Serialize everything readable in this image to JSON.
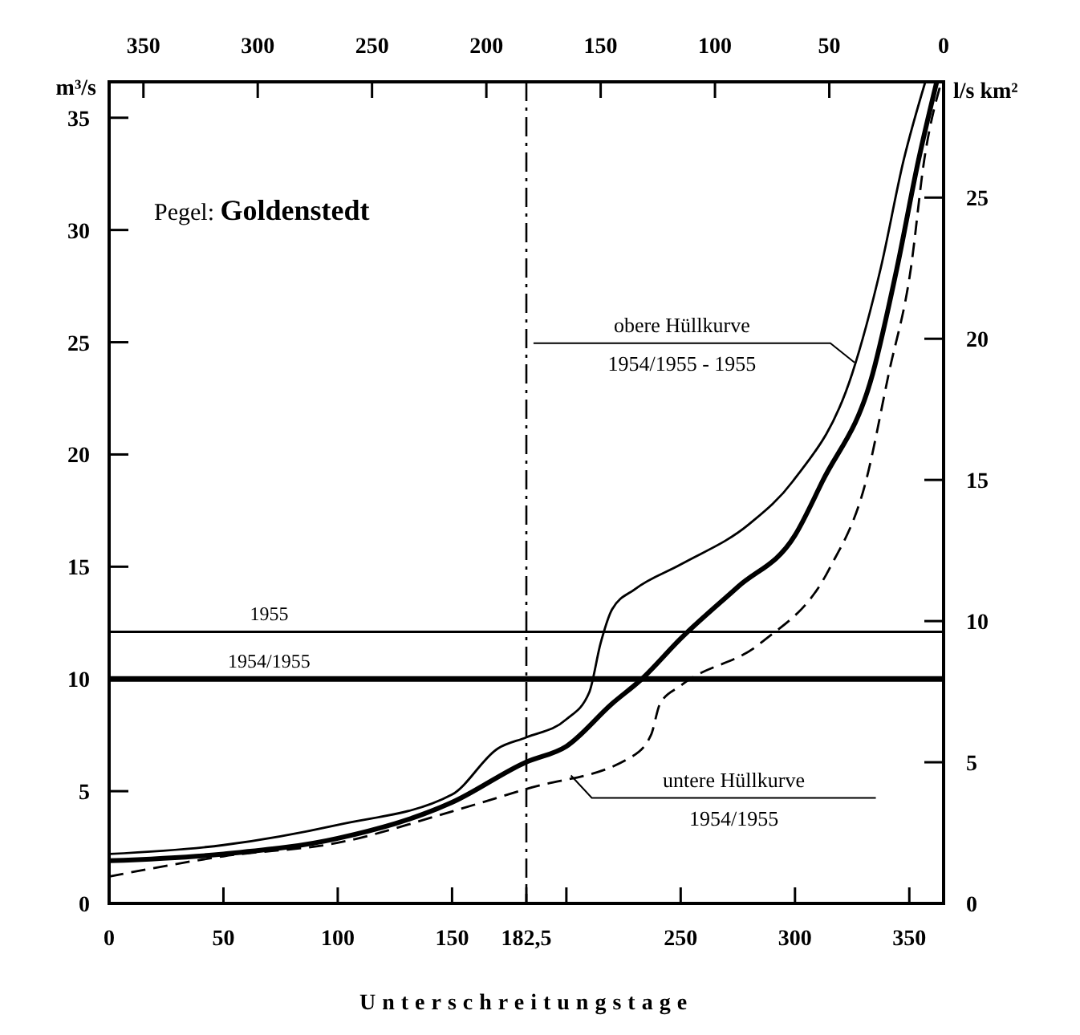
{
  "chart_data": {
    "type": "line",
    "title": "Pegel: Goldenstedt",
    "xlabel": "Unterschreitungstage",
    "ylabel": "m³/s",
    "y2label": "l/s km²",
    "xlim": [
      0,
      365
    ],
    "xticks": [
      0,
      50,
      100,
      150,
      {
        "value": 182.5,
        "label": "182,5"
      },
      {
        "value": 200,
        "label": null
      },
      250,
      300,
      350
    ],
    "x2lim": [
      365,
      0
    ],
    "x2ticks": [
      350,
      300,
      250,
      200,
      150,
      100,
      50,
      0
    ],
    "ylim": [
      0,
      36.6
    ],
    "yticks": [
      0,
      5,
      10,
      15,
      20,
      25,
      30,
      35
    ],
    "y2lim": [
      0,
      29.1
    ],
    "y2ticks": [
      0,
      5,
      10,
      15,
      20,
      25
    ],
    "grid": false,
    "marker": "none",
    "series": [
      {
        "color": "#000000",
        "line_style": "solid",
        "x": [
          0,
          50,
          100,
          150,
          170,
          182.5,
          200,
          210,
          215,
          220,
          230,
          250,
          280,
          299,
          325,
          337.5,
          347.5,
          357
        ],
        "values": [
          2.2,
          2.6,
          3.5,
          4.85,
          6.9,
          7.4,
          8.2,
          9.4,
          11.6,
          13.1,
          14,
          15.1,
          16.9,
          18.8,
          23.6,
          28.3,
          33.1,
          36.6
        ]
      },
      {
        "color": "#000000",
        "line_style": "solid",
        "x": [
          0,
          50,
          100,
          150,
          182.5,
          200,
          220,
          233,
          250,
          275,
          300,
          312,
          334,
          344.6,
          354,
          362
        ],
        "values": [
          1.9,
          2.2,
          2.9,
          4.5,
          6.3,
          7,
          8.9,
          10,
          11.8,
          14.1,
          16.4,
          18.8,
          23.6,
          28.3,
          33.1,
          36.6
        ]
      },
      {
        "color": "#000000",
        "line_style": "dashed",
        "x": [
          0,
          50,
          100,
          150,
          182.5,
          228,
          237,
          241,
          250,
          285,
          315,
          331,
          341,
          350.7,
          356.5,
          364
        ],
        "values": [
          1.2,
          2.1,
          2.7,
          4.1,
          5.1,
          6.5,
          7.5,
          8.9,
          9.7,
          11.6,
          14.9,
          18.8,
          23.6,
          28.3,
          33.1,
          36.6
        ]
      }
    ],
    "ref_lines": [
      {
        "axis": "y",
        "value": 12.1,
        "color": "#000000",
        "line_style": "solid"
      },
      {
        "axis": "y",
        "value": 10,
        "color": "#000000",
        "line_style": "solid"
      },
      {
        "axis": "x",
        "value": 182.5,
        "color": "#000000",
        "line_style": "dashdot"
      }
    ],
    "annotations": [
      {
        "text": "obere Hüllkurve\n1954/1955 - 1955",
        "x": 326,
        "y": 24.1
      },
      {
        "text": "untere Hüllkurve\n1954/1955",
        "x": 202,
        "y": 5.7
      },
      {
        "text": "1955",
        "x": 70,
        "y": 12.1
      },
      {
        "text": "1954/1955",
        "x": 70,
        "y": 10
      }
    ]
  }
}
